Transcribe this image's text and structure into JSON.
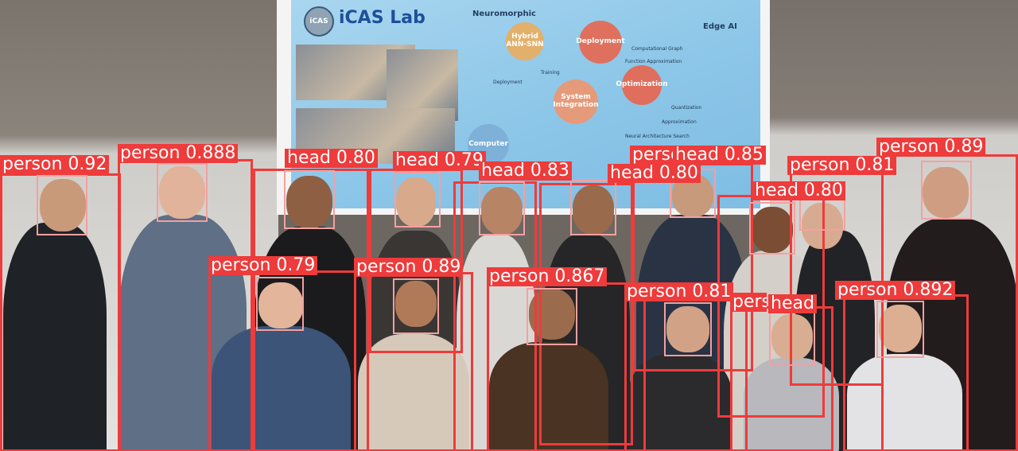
{
  "slide": {
    "title": "iCAS Lab",
    "logo_text": "iCAS",
    "section_left": "Neuromorphic",
    "section_right": "Edge AI",
    "nodes": {
      "hybrid": "Hybrid ANN-SNN",
      "deployment": "Deployment",
      "optimization": "Optimization",
      "system": "System Integration",
      "computer": "Computer"
    },
    "labels": {
      "computational_graph": "Computational Graph",
      "function_approx": "Function Approximation",
      "deployment_small": "Deployment",
      "training": "Training",
      "quantization": "Quantization",
      "approximation": "Approximation",
      "nas": "Neural Architecture Search"
    }
  },
  "detections": [
    {
      "label": "person",
      "score_text": "person 0.92"
    },
    {
      "label": "person",
      "score_text": "person 0.888"
    },
    {
      "label": "head",
      "score_text": "head 0.80"
    },
    {
      "label": "head",
      "score_text": "head 0.79"
    },
    {
      "label": "head",
      "score_text": "head 0.83"
    },
    {
      "label": "head",
      "score_text": "head 0.80"
    },
    {
      "label": "person",
      "score_text": "person 0.8"
    },
    {
      "label": "head",
      "score_text": "head 0.85"
    },
    {
      "label": "person",
      "score_text": "person 0.81"
    },
    {
      "label": "head",
      "score_text": "head 0.80"
    },
    {
      "label": "person",
      "score_text": "person 0.89"
    },
    {
      "label": "person",
      "score_text": "person 0.79"
    },
    {
      "label": "person",
      "score_text": "person 0.89"
    },
    {
      "label": "person",
      "score_text": "person 0.867"
    },
    {
      "label": "person",
      "score_text": "person 0.81"
    },
    {
      "label": "person",
      "score_text": "person 0.892"
    },
    {
      "label": "head",
      "score_text": "head"
    },
    {
      "label": "person",
      "score_text": "person 0.87"
    }
  ],
  "colors": {
    "person_box": "#ee3b3b",
    "head_box": "#f4a0a0",
    "slide_bg": "#8cc6e8"
  }
}
